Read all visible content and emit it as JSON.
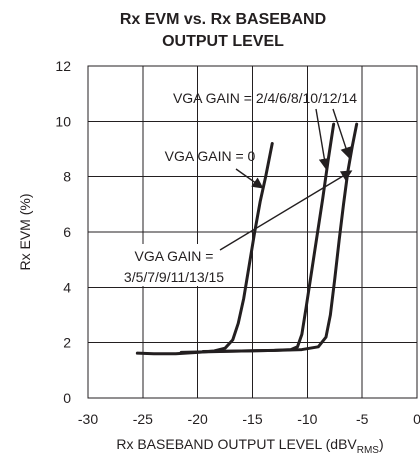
{
  "chart_data": {
    "type": "line",
    "title_lines": [
      "Rx EVM vs. Rx BASEBAND",
      "OUTPUT LEVEL"
    ],
    "xlabel": "Rx BASEBAND OUTPUT LEVEL (dBV",
    "xlabel_sub": "RMS",
    "xlabel_suffix": ")",
    "ylabel": "Rx EVM (%)",
    "xlim": [
      -30,
      0
    ],
    "ylim": [
      0,
      12
    ],
    "x_ticks": [
      -30,
      -25,
      -20,
      -15,
      -10,
      -5,
      0
    ],
    "y_ticks": [
      0,
      2,
      4,
      6,
      8,
      10,
      12
    ],
    "grid": true,
    "series": [
      {
        "x": [
          -25.5,
          -24,
          -22,
          -20,
          -18.5,
          -17.5,
          -16.8,
          -16.3,
          -15.8,
          -15.3,
          -14.8,
          -14.3,
          -13.8,
          -13.5,
          -13.2
        ],
        "y": [
          1.62,
          1.6,
          1.6,
          1.65,
          1.7,
          1.8,
          2.1,
          2.7,
          3.6,
          4.8,
          6.0,
          7.1,
          8.0,
          8.6,
          9.2
        ]
      },
      {
        "x": [
          -21.5,
          -19,
          -16,
          -13,
          -11.5,
          -10.9,
          -10.5,
          -10.1,
          -9.6,
          -9.1,
          -8.6,
          -8.1,
          -7.6
        ],
        "y": [
          1.65,
          1.67,
          1.7,
          1.72,
          1.75,
          1.85,
          2.3,
          3.3,
          4.6,
          5.9,
          7.2,
          8.6,
          9.9
        ]
      },
      {
        "x": [
          -19.5,
          -16,
          -13,
          -10.5,
          -9,
          -8.3,
          -7.9,
          -7.5,
          -7.1,
          -6.7,
          -6.3,
          -5.9,
          -5.5
        ],
        "y": [
          1.68,
          1.7,
          1.72,
          1.75,
          1.85,
          2.2,
          3.0,
          4.3,
          5.7,
          7.0,
          8.2,
          9.1,
          9.9
        ]
      }
    ],
    "annotations": [
      {
        "id": "gain0",
        "text": "VGA GAIN = 0",
        "target": [
          -14.1,
          7.6
        ]
      },
      {
        "id": "gainEven",
        "text": "VGA GAIN = 2/4/6/8/10/12/14",
        "targets": [
          [
            -8.3,
            8.3
          ],
          [
            -6.2,
            8.7
          ]
        ]
      },
      {
        "id": "gainOdd",
        "text_lines": [
          "VGA GAIN =",
          "3/5/7/9/11/13/15"
        ],
        "target": [
          -6.0,
          8.2
        ]
      }
    ]
  }
}
